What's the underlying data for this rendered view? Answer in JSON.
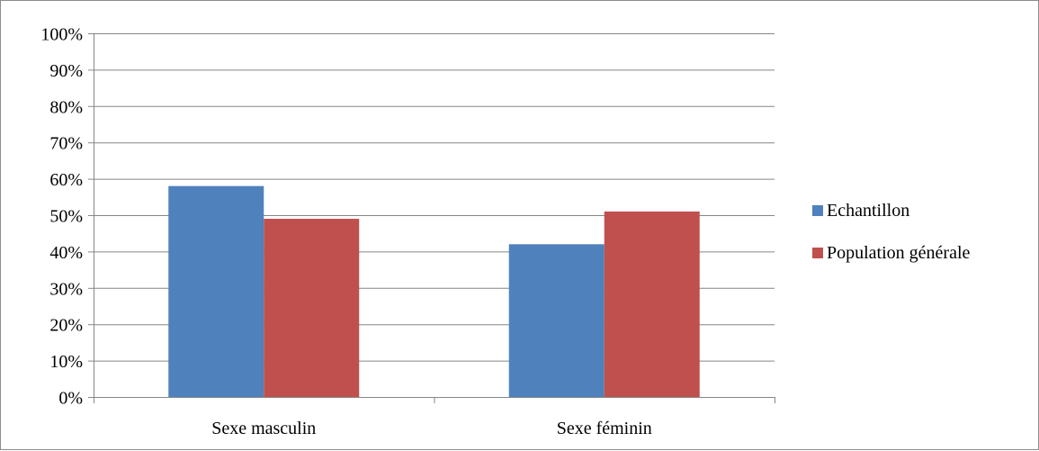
{
  "chart_data": {
    "type": "bar",
    "categories": [
      "Sexe masculin",
      "Sexe féminin"
    ],
    "series": [
      {
        "name": "Echantillon",
        "color": "#4f81bd",
        "values": [
          58,
          42
        ]
      },
      {
        "name": "Population générale",
        "color": "#c0504d",
        "values": [
          49,
          51
        ]
      }
    ],
    "y_unit": "%",
    "ylim": [
      0,
      100
    ],
    "y_ticks": [
      0,
      10,
      20,
      30,
      40,
      50,
      60,
      70,
      80,
      90,
      100
    ],
    "y_tick_labels": [
      "0%",
      "10%",
      "20%",
      "30%",
      "40%",
      "50%",
      "60%",
      "70%",
      "80%",
      "90%",
      "100%"
    ],
    "grid": true,
    "legend_position": "right",
    "gridline_color": "#868686",
    "axis_color": "#868686"
  }
}
